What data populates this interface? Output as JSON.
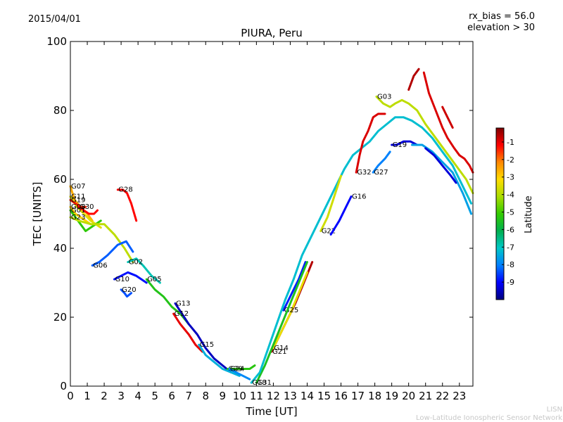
{
  "chart_data": {
    "type": "line",
    "date": "2015/04/01",
    "title": "PIURA, Peru",
    "annotation_lines": [
      "rx_bias = 56.0",
      "elevation > 30"
    ],
    "xlabel": "Time [UT]",
    "ylabel": "TEC [UNITS]",
    "xlim": [
      0,
      23.8
    ],
    "ylim": [
      0,
      100
    ],
    "x_ticks": [
      0,
      1,
      2,
      3,
      4,
      5,
      6,
      7,
      8,
      9,
      10,
      11,
      12,
      13,
      14,
      15,
      16,
      17,
      18,
      19,
      20,
      21,
      22,
      23
    ],
    "y_ticks": [
      0,
      20,
      40,
      60,
      80,
      100
    ],
    "colorbar": {
      "label": "Latitude",
      "min": -10,
      "max": -0.2,
      "ticks": [
        -1,
        -2,
        -3,
        -4,
        -5,
        -6,
        -7,
        -8,
        -9
      ],
      "colormap": [
        "#00007f",
        "#0000ff",
        "#007fff",
        "#00c8c8",
        "#00b050",
        "#33cc00",
        "#aadd00",
        "#ffdd00",
        "#ff8800",
        "#ff0000",
        "#7f0000"
      ]
    },
    "series": [
      {
        "name": "G07",
        "lat": -2.6,
        "points": [
          [
            0.0,
            58
          ],
          [
            0.25,
            54
          ],
          [
            0.6,
            52
          ],
          [
            1.0,
            50
          ],
          [
            1.3,
            48
          ]
        ]
      },
      {
        "name": "G11",
        "lat": -3.5,
        "points": [
          [
            0.0,
            55
          ],
          [
            0.4,
            52
          ],
          [
            0.8,
            50
          ],
          [
            1.2,
            48
          ],
          [
            1.8,
            46
          ]
        ]
      },
      {
        "name": "G19",
        "lat": -1.4,
        "points": [
          [
            0.0,
            54
          ],
          [
            0.3,
            53
          ],
          [
            0.6,
            52
          ],
          [
            0.9,
            52
          ]
        ]
      },
      {
        "name": "G30",
        "lat": -1.2,
        "points": [
          [
            0.5,
            52
          ],
          [
            0.8,
            51
          ],
          [
            1.1,
            50
          ],
          [
            1.4,
            50
          ],
          [
            1.6,
            51
          ]
        ]
      },
      {
        "name": "G08",
        "lat": -3.0,
        "points": [
          [
            0.0,
            52
          ],
          [
            0.3,
            50
          ],
          [
            0.6,
            49
          ],
          [
            0.9,
            48
          ],
          [
            1.2,
            47
          ]
        ]
      },
      {
        "name": "G01",
        "lat": -5.2,
        "points": [
          [
            0.0,
            51
          ],
          [
            0.3,
            49
          ],
          [
            0.6,
            47
          ],
          [
            0.9,
            45
          ],
          [
            1.2,
            46
          ],
          [
            1.8,
            48
          ]
        ]
      },
      {
        "name": "G23",
        "lat": -3.9,
        "points": [
          [
            0.0,
            49
          ],
          [
            0.5,
            48
          ],
          [
            1.2,
            47
          ],
          [
            2.0,
            47
          ],
          [
            2.6,
            44
          ],
          [
            3.2,
            40
          ],
          [
            3.7,
            36
          ]
        ]
      },
      {
        "name": "G06",
        "lat": -8.3,
        "points": [
          [
            1.3,
            35
          ],
          [
            1.7,
            36
          ],
          [
            2.2,
            38
          ],
          [
            2.8,
            41
          ],
          [
            3.3,
            42
          ],
          [
            3.7,
            39
          ]
        ]
      },
      {
        "name": "G28",
        "lat": -1.2,
        "points": [
          [
            2.8,
            57
          ],
          [
            3.1,
            57
          ],
          [
            3.35,
            56
          ],
          [
            3.6,
            53
          ],
          [
            3.9,
            48
          ]
        ]
      },
      {
        "name": "G02",
        "lat": -6.9,
        "points": [
          [
            3.4,
            36
          ],
          [
            3.9,
            37
          ],
          [
            4.3,
            35
          ],
          [
            4.8,
            32
          ],
          [
            5.3,
            30
          ]
        ]
      },
      {
        "name": "G10",
        "lat": -8.9,
        "points": [
          [
            2.6,
            31
          ],
          [
            3.0,
            32
          ],
          [
            3.4,
            33
          ],
          [
            3.9,
            32
          ],
          [
            4.5,
            30
          ]
        ]
      },
      {
        "name": "G20",
        "lat": -8.4,
        "points": [
          [
            3.0,
            28
          ],
          [
            3.2,
            27
          ],
          [
            3.35,
            26
          ],
          [
            3.6,
            27
          ]
        ]
      },
      {
        "name": "G05",
        "lat": -5.4,
        "points": [
          [
            4.5,
            31
          ],
          [
            5.0,
            28
          ],
          [
            5.5,
            26
          ],
          [
            6.0,
            23
          ],
          [
            6.5,
            21
          ],
          [
            7.0,
            18
          ]
        ]
      },
      {
        "name": "G13",
        "lat": -9.5,
        "points": [
          [
            6.2,
            24
          ],
          [
            6.6,
            21
          ],
          [
            7.0,
            18
          ],
          [
            7.5,
            15
          ],
          [
            8.0,
            11
          ],
          [
            8.5,
            8
          ],
          [
            9.0,
            6
          ],
          [
            9.5,
            4
          ]
        ]
      },
      {
        "name": "G12",
        "lat": -1.0,
        "points": [
          [
            6.1,
            21
          ],
          [
            6.5,
            18
          ],
          [
            7.0,
            15
          ],
          [
            7.4,
            12
          ],
          [
            7.8,
            10
          ]
        ]
      },
      {
        "name": "G15",
        "lat": -7.4,
        "points": [
          [
            7.6,
            12
          ],
          [
            8.0,
            9
          ],
          [
            8.5,
            7
          ],
          [
            9.0,
            5
          ],
          [
            9.5,
            4
          ],
          [
            10.0,
            3
          ]
        ]
      },
      {
        "name": "G29",
        "lat": -5.3,
        "points": [
          [
            9.3,
            5
          ],
          [
            9.7,
            5
          ],
          [
            10.2,
            5
          ],
          [
            10.6,
            5
          ],
          [
            10.9,
            6
          ]
        ]
      },
      {
        "name": "G24",
        "lat": -7.9,
        "points": [
          [
            9.4,
            5
          ],
          [
            9.8,
            4
          ],
          [
            10.2,
            3
          ],
          [
            10.6,
            2
          ]
        ]
      },
      {
        "name": "G21",
        "lat": -0.6,
        "points": [
          [
            11.9,
            10
          ],
          [
            12.3,
            14
          ],
          [
            12.8,
            19
          ],
          [
            13.3,
            24
          ],
          [
            13.8,
            30
          ],
          [
            14.3,
            36
          ]
        ]
      },
      {
        "name": "G14",
        "lat": -3.4,
        "points": [
          [
            12.0,
            11
          ],
          [
            12.5,
            16
          ],
          [
            13.0,
            21
          ],
          [
            13.5,
            27
          ],
          [
            14.0,
            33
          ]
        ]
      },
      {
        "name": "G25",
        "lat": -8.8,
        "points": [
          [
            12.6,
            22
          ],
          [
            13.0,
            26
          ],
          [
            13.5,
            31
          ],
          [
            13.9,
            36
          ]
        ]
      },
      {
        "name": "G31",
        "lat": -5.5,
        "points": [
          [
            11.0,
            1
          ],
          [
            11.5,
            6
          ],
          [
            12.0,
            12
          ],
          [
            12.5,
            18
          ],
          [
            13.0,
            24
          ],
          [
            13.5,
            30
          ],
          [
            14.0,
            36
          ]
        ]
      },
      {
        "name": "G18",
        "lat": -7.2,
        "points": [
          [
            10.7,
            1
          ],
          [
            11.2,
            4
          ],
          [
            11.7,
            11
          ],
          [
            12.2,
            18
          ],
          [
            12.7,
            25
          ],
          [
            13.2,
            31
          ],
          [
            13.7,
            38
          ],
          [
            14.2,
            43
          ],
          [
            14.7,
            48
          ],
          [
            15.2,
            53
          ],
          [
            15.7,
            58
          ],
          [
            16.2,
            63
          ],
          [
            16.7,
            67
          ],
          [
            17.2,
            69
          ],
          [
            17.7,
            71
          ],
          [
            18.2,
            74
          ],
          [
            18.7,
            76
          ],
          [
            19.2,
            78
          ],
          [
            19.7,
            78
          ],
          [
            20.2,
            77
          ],
          [
            20.8,
            75
          ],
          [
            21.4,
            72
          ],
          [
            22.0,
            68
          ],
          [
            22.6,
            64
          ],
          [
            23.2,
            58
          ],
          [
            23.7,
            53
          ]
        ]
      },
      {
        "name": "G22",
        "lat": -3.7,
        "points": [
          [
            14.8,
            45
          ],
          [
            15.2,
            49
          ],
          [
            15.6,
            55
          ],
          [
            16.0,
            61
          ]
        ]
      },
      {
        "name": "G16",
        "lat": -9.0,
        "points": [
          [
            16.6,
            55
          ],
          [
            16.3,
            52
          ],
          [
            15.9,
            48
          ],
          [
            15.4,
            44
          ]
        ]
      },
      {
        "name": "G27",
        "lat": -8.0,
        "points": [
          [
            17.9,
            62
          ],
          [
            18.2,
            64
          ],
          [
            18.6,
            66
          ],
          [
            18.9,
            68
          ]
        ]
      },
      {
        "name": "G32",
        "lat": -0.9,
        "points": [
          [
            16.9,
            62
          ],
          [
            17.1,
            67
          ],
          [
            17.3,
            71
          ],
          [
            17.6,
            74
          ],
          [
            17.9,
            78
          ],
          [
            18.2,
            79
          ],
          [
            18.6,
            79
          ]
        ]
      },
      {
        "name": "G19",
        "lat": -9.3,
        "points": [
          [
            19.0,
            70
          ],
          [
            19.3,
            70
          ],
          [
            19.7,
            71
          ],
          [
            20.1,
            71
          ],
          [
            20.5,
            70
          ]
        ]
      },
      {
        "name": "G03",
        "lat": -3.9,
        "points": [
          [
            18.1,
            84
          ],
          [
            18.5,
            82
          ],
          [
            18.9,
            81
          ],
          [
            19.2,
            82
          ],
          [
            19.6,
            83
          ],
          [
            20.0,
            82
          ],
          [
            20.5,
            80
          ],
          [
            21.0,
            76
          ],
          [
            21.6,
            72
          ],
          [
            22.2,
            68
          ],
          [
            22.8,
            64
          ],
          [
            23.4,
            60
          ],
          [
            23.8,
            56
          ]
        ]
      },
      {
        "name": "",
        "lat": -0.6,
        "points": [
          [
            20.0,
            86
          ],
          [
            20.3,
            90
          ],
          [
            20.6,
            92
          ]
        ]
      },
      {
        "name": "",
        "lat": -0.9,
        "points": [
          [
            20.9,
            91
          ],
          [
            21.2,
            85
          ],
          [
            21.6,
            80
          ],
          [
            22.0,
            75
          ],
          [
            22.3,
            72
          ],
          [
            22.7,
            69
          ],
          [
            23.0,
            67
          ],
          [
            23.3,
            66
          ],
          [
            23.6,
            64
          ],
          [
            23.8,
            62
          ]
        ]
      },
      {
        "name": "",
        "lat": -7.6,
        "points": [
          [
            20.2,
            70
          ],
          [
            20.8,
            70
          ],
          [
            21.4,
            68
          ],
          [
            22.0,
            65
          ],
          [
            22.6,
            62
          ],
          [
            23.2,
            56
          ],
          [
            23.7,
            50
          ]
        ]
      },
      {
        "name": "",
        "lat": -9.3,
        "points": [
          [
            21.0,
            69
          ],
          [
            21.5,
            67
          ],
          [
            22.0,
            64
          ],
          [
            22.5,
            61
          ],
          [
            22.8,
            59
          ]
        ]
      },
      {
        "name": "",
        "lat": -0.8,
        "points": [
          [
            22.0,
            81
          ],
          [
            22.3,
            78
          ],
          [
            22.6,
            75
          ]
        ]
      }
    ]
  },
  "credits": {
    "line1": "LISN",
    "line2": "Low-Latitude Ionospheric Sensor Network"
  }
}
